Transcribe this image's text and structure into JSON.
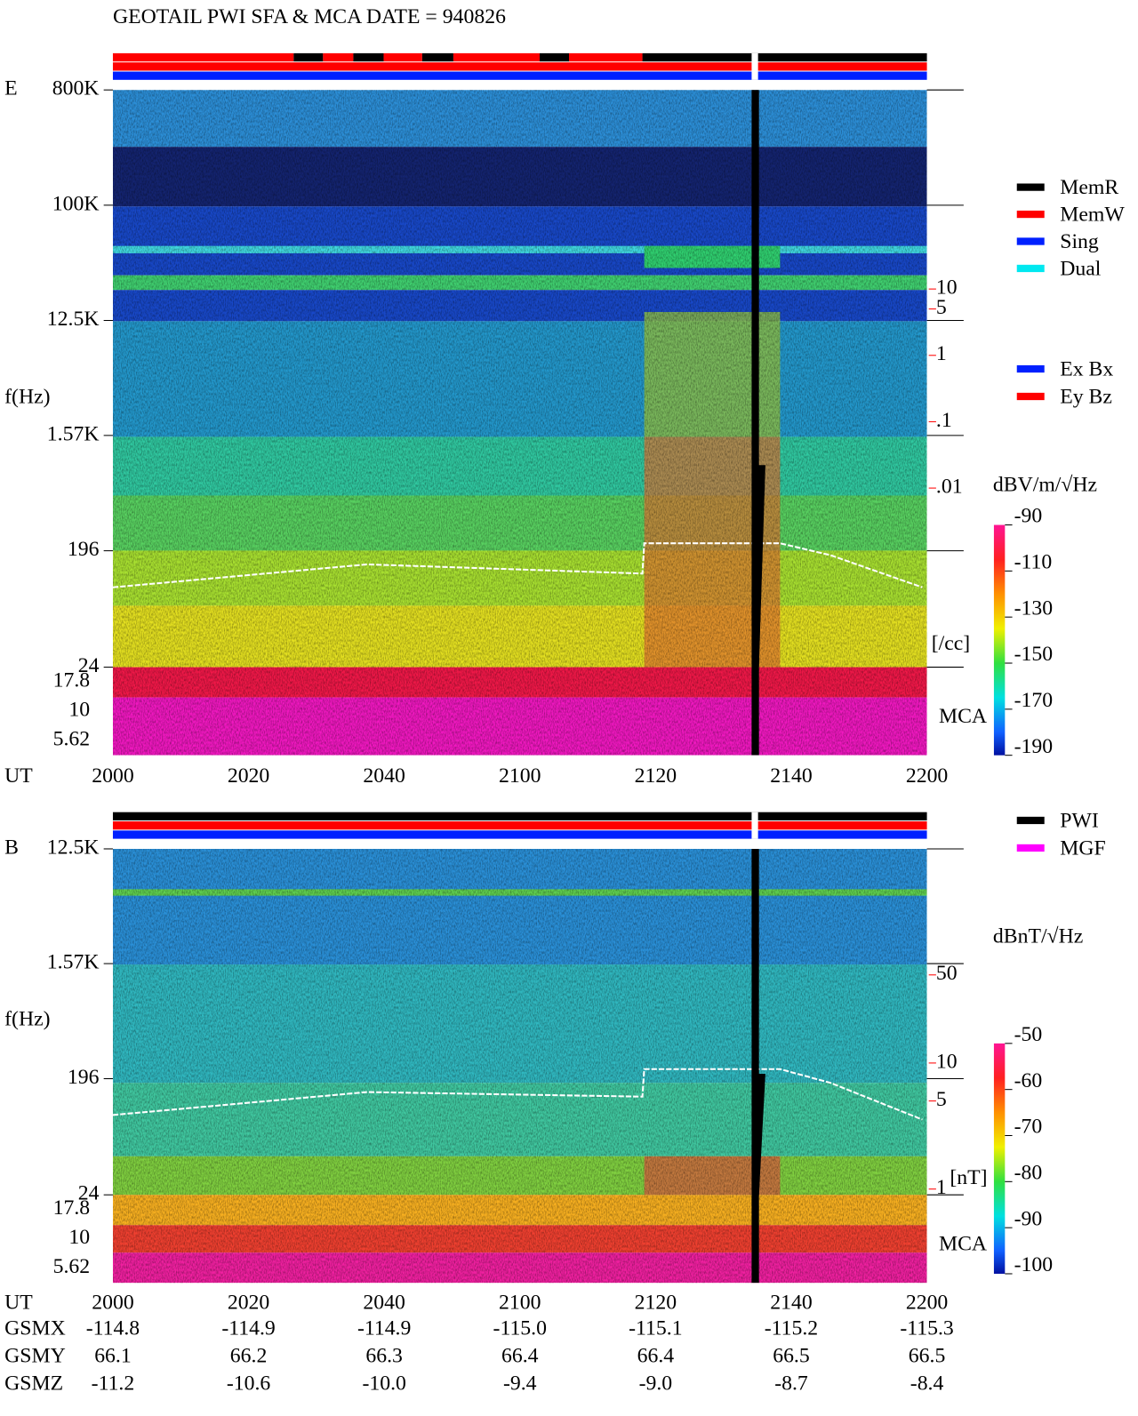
{
  "title": "GEOTAIL  PWI SFA & MCA   DATE = 940826",
  "time_axis": {
    "label": "UT",
    "ticks": [
      "2000",
      "2020",
      "2040",
      "2100",
      "2120",
      "2140",
      "2200"
    ]
  },
  "panels": [
    {
      "name": "E",
      "y_label": "f(Hz)",
      "yscale": "log",
      "ylim": [
        800000,
        24
      ],
      "yticks": [
        {
          "value": 800000,
          "label": "800K"
        },
        {
          "value": 100000,
          "label": "100K"
        },
        {
          "value": 12500,
          "label": "12.5K"
        },
        {
          "value": 1570,
          "label": "1.57K"
        },
        196,
        24
      ],
      "mca_label": "MCA",
      "mca_ticks": [
        "17.8",
        "10",
        "5.62"
      ],
      "density_unit": "[/cc]",
      "density_lim": [
        10000,
        2e-05
      ],
      "density_ticks": [
        10,
        5,
        1,
        {
          "value": 0.1,
          "label": ".1"
        },
        {
          "value": 0.01,
          "label": ".01"
        }
      ],
      "colorbar": {
        "label": "dBV/m/√Hz",
        "lim": [
          -90,
          -190
        ],
        "ticks": [
          -90,
          -110,
          -130,
          -150,
          -170,
          -190
        ]
      }
    },
    {
      "name": "B",
      "y_label": "f(Hz)",
      "yscale": "log",
      "ylim": [
        12500,
        24
      ],
      "yticks": [
        {
          "value": 12500,
          "label": "12.5K"
        },
        {
          "value": 1570,
          "label": "1.57K"
        },
        196,
        24
      ],
      "mca_label": "MCA",
      "mca_ticks": [
        "17.8",
        "10",
        "5.62"
      ],
      "density_unit": "[nT]",
      "density_lim": [
        500,
        0.9
      ],
      "density_ticks": [
        50,
        10,
        5,
        1
      ],
      "colorbar": {
        "label": "dBnT/√Hz",
        "lim": [
          -50,
          -100
        ],
        "ticks": [
          -50,
          -60,
          -70,
          -80,
          -90,
          -100
        ]
      }
    }
  ],
  "legends": {
    "status": [
      {
        "name": "MemR",
        "color": "#000000"
      },
      {
        "name": "MemW",
        "color": "#ff0000"
      },
      {
        "name": "Sing",
        "color": "#0020ff"
      },
      {
        "name": "Dual",
        "color": "#00e8f0"
      }
    ],
    "components": [
      {
        "name": "Ex Bx",
        "color": "#0020ff"
      },
      {
        "name": "Ey Bz",
        "color": "#ff0000"
      }
    ],
    "instruments": [
      {
        "name": "PWI",
        "color": "#000000"
      },
      {
        "name": "MGF",
        "color": "#ff00ff"
      }
    ]
  },
  "orbit": [
    {
      "label": "GSMX",
      "values": [
        "-114.8",
        "-114.9",
        "-114.9",
        "-115.0",
        "-115.1",
        "-115.2",
        "-115.3"
      ]
    },
    {
      "label": "GSMY",
      "values": [
        "66.1",
        "66.2",
        "66.3",
        "66.4",
        "66.4",
        "66.5",
        "66.5"
      ]
    },
    {
      "label": "GSMZ",
      "values": [
        "-11.2",
        "-10.6",
        "-10.0",
        "-9.4",
        "-9.0",
        "-8.7",
        "-8.4"
      ]
    }
  ]
}
